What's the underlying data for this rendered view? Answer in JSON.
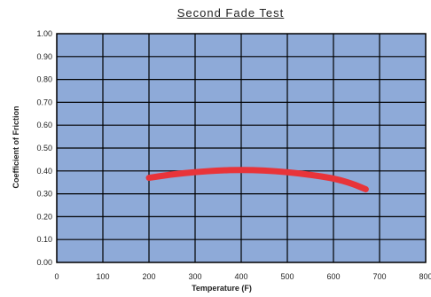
{
  "chart_data": {
    "type": "line",
    "title": "Second Fade Test",
    "xlabel": "Temperature (F)",
    "ylabel": "Coefficient of Friction",
    "xlim": [
      0,
      800
    ],
    "ylim": [
      0,
      1.0
    ],
    "x_ticks": [
      "0",
      "100",
      "200",
      "300",
      "400",
      "500",
      "600",
      "700",
      "800"
    ],
    "y_ticks": [
      "0.00",
      "0.10",
      "0.20",
      "0.30",
      "0.40",
      "0.50",
      "0.60",
      "0.70",
      "0.80",
      "0.90",
      "1.00"
    ],
    "grid": true,
    "legend": "none",
    "series": [
      {
        "color": "#e8343a",
        "x": [
          200,
          250,
          300,
          350,
          400,
          450,
          500,
          550,
          600,
          640,
          670
        ],
        "y": [
          0.37,
          0.385,
          0.395,
          0.402,
          0.405,
          0.402,
          0.395,
          0.383,
          0.368,
          0.345,
          0.32
        ]
      }
    ]
  },
  "colors": {
    "plot_background": "#8eaad8",
    "grid": "#000000",
    "series": "#e8343a"
  }
}
